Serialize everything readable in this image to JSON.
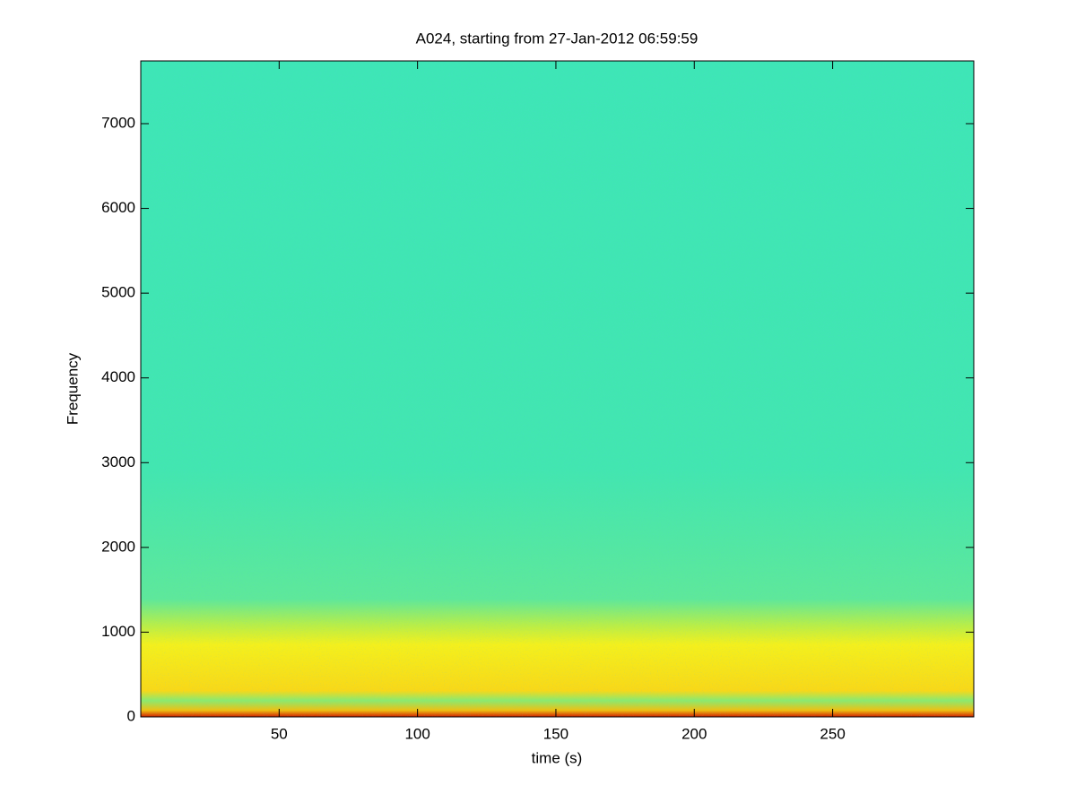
{
  "chart_data": {
    "type": "spectrogram",
    "title": "A024, starting from 27-Jan-2012 06:59:59",
    "x_label": "time (s)",
    "y_label": "Frequency",
    "xlim": [
      0,
      301
    ],
    "xticks": [
      50,
      100,
      150,
      200,
      250
    ],
    "ylim": [
      0,
      7740
    ],
    "yticks": [
      0,
      1000,
      2000,
      3000,
      4000,
      5000,
      6000,
      7000
    ]
  }
}
